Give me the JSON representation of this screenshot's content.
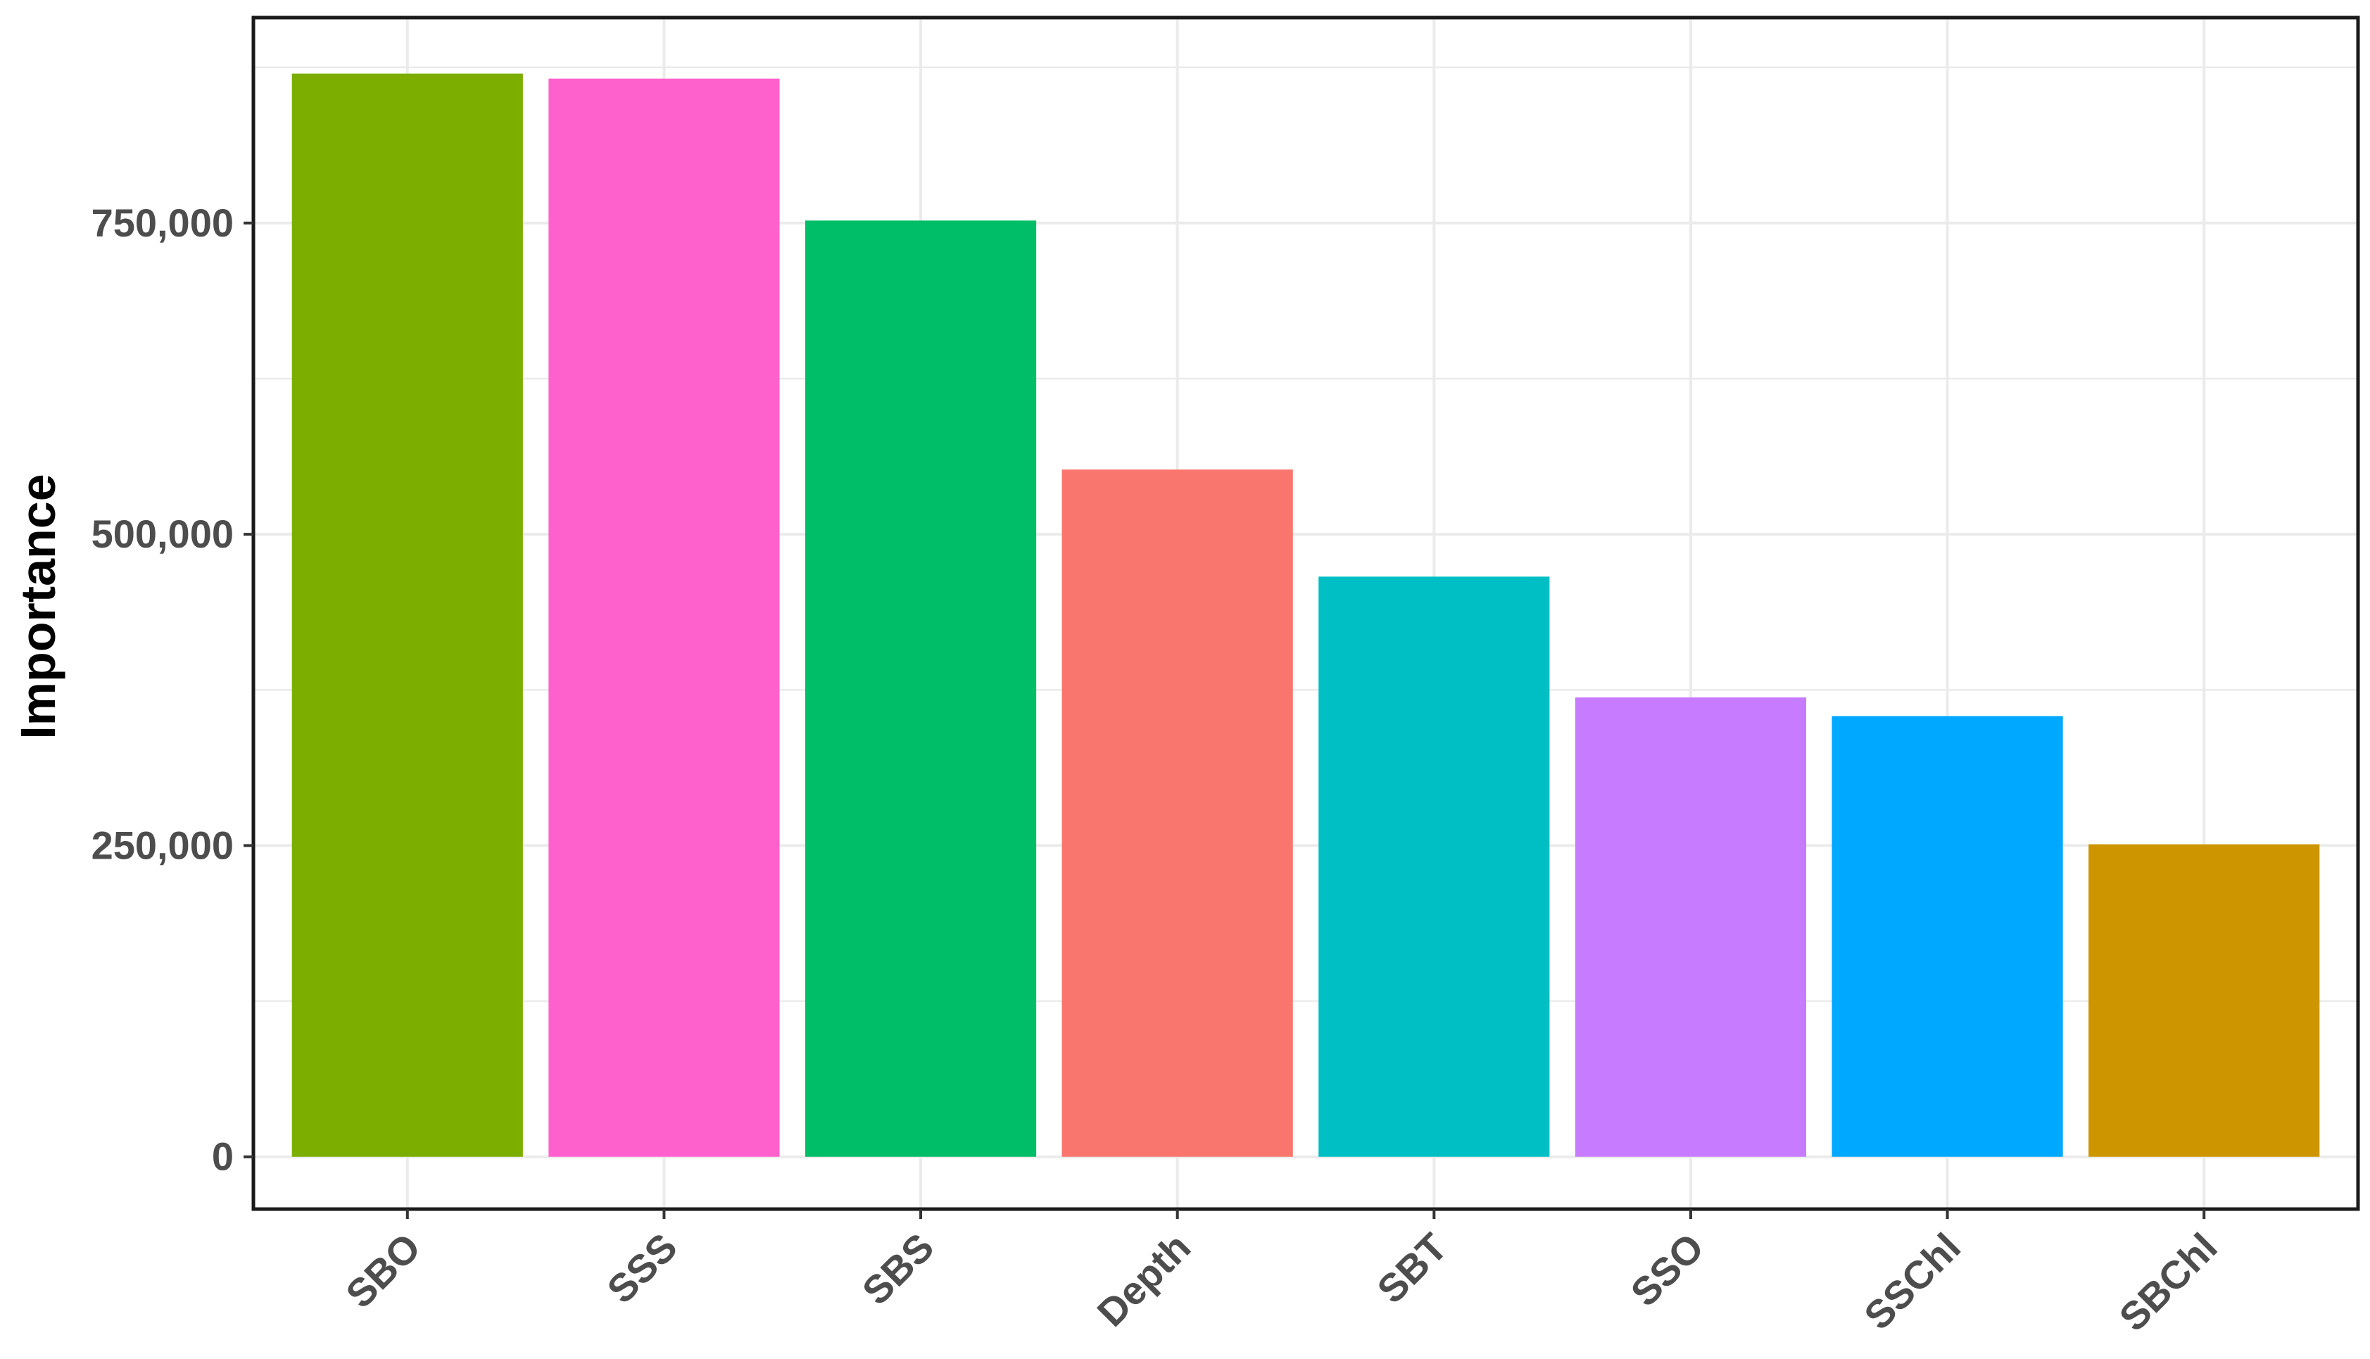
{
  "chart_data": {
    "type": "bar",
    "title": "",
    "xlabel": "",
    "ylabel": "Importance",
    "categories": [
      "SBO",
      "SSS",
      "SBS",
      "Depth",
      "SBT",
      "SSO",
      "SSChl",
      "SBChl"
    ],
    "values": [
      870000,
      866000,
      752000,
      552000,
      466000,
      369000,
      354000,
      251000
    ],
    "colors": [
      "#7CAE00",
      "#FF61CC",
      "#00BE67",
      "#F8766D",
      "#00BFC4",
      "#C77CFF",
      "#00A9FF",
      "#CD9600"
    ],
    "ylim": [
      -42000,
      915000
    ],
    "y_major_ticks": [
      0,
      250000,
      500000,
      750000
    ],
    "y_tick_labels": [
      "0",
      "250,000",
      "500,000",
      "750,000"
    ],
    "y_minor_ticks": [
      125000,
      375000,
      625000,
      875000
    ],
    "grid": true,
    "legend": "none"
  }
}
